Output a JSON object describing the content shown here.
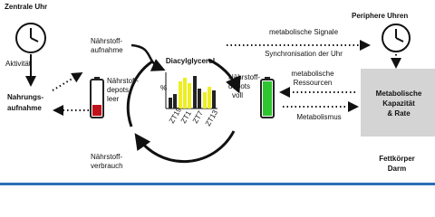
{
  "left": {
    "title": "Zentrale Uhr",
    "activity": "Aktivität",
    "food_intake": [
      "Nahrungs-",
      "aufnahme"
    ]
  },
  "cycle": {
    "intake": [
      "Nährstoff-",
      "aufnahme"
    ],
    "empty": [
      "Nährstoff-",
      "depots",
      "leer"
    ],
    "full": [
      "Nährstoff-",
      "depots",
      "voll"
    ],
    "consumption": [
      "Nährstoff-",
      "verbrauch"
    ],
    "inset": {
      "title": "Diacylglycerol",
      "unit": "%",
      "labels": [
        "ZT19",
        "ZT1",
        "ZT7",
        "ZT13"
      ]
    }
  },
  "arrows": {
    "signals": [
      "metabolische Signale",
      "Synchronisation der Uhr"
    ],
    "resources": [
      "metabolische",
      "Ressourcen"
    ],
    "metabolism": "Metabolismus"
  },
  "right": {
    "title": "Periphere Uhren",
    "box": [
      "Metabolische",
      "Kapazität",
      "& Rate"
    ],
    "tissues": [
      "Fettkörper",
      "Darm"
    ]
  }
}
